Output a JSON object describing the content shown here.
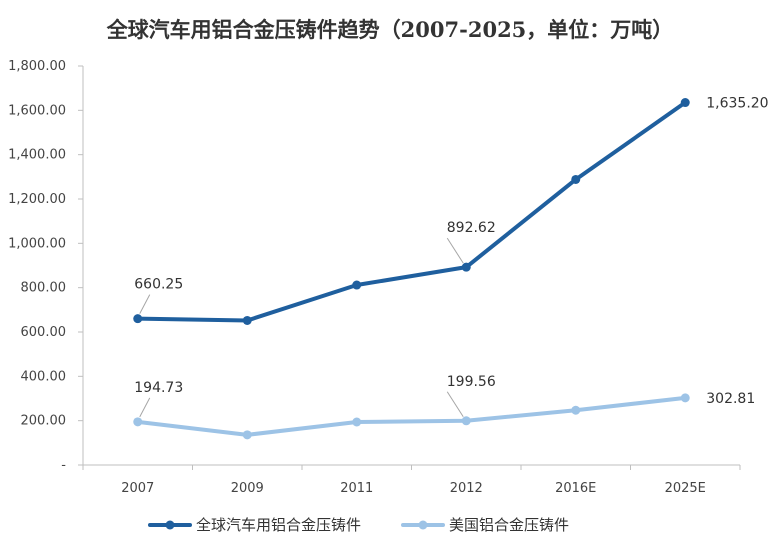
{
  "chart_data": {
    "type": "line",
    "title": "全球汽车用铝合金压铸件趋势（2007-2025，单位：万吨）",
    "categories": [
      "2007",
      "2009",
      "2011",
      "2012",
      "2016E",
      "2025E"
    ],
    "y_ticks": [
      "-",
      "200.00",
      "400.00",
      "600.00",
      "800.00",
      "1,000.00",
      "1,200.00",
      "1,400.00",
      "1,600.00",
      "1,800.00"
    ],
    "ylim": [
      0,
      1800
    ],
    "grid": false,
    "legend_position": "bottom",
    "series": [
      {
        "name": "全球汽车用铝合金压铸件",
        "color": "#1F5F9E",
        "values": [
          660.25,
          652,
          812,
          892.62,
          1288,
          1635.2
        ],
        "labels": [
          {
            "index": 0,
            "text": "660.25"
          },
          {
            "index": 3,
            "text": "892.62"
          },
          {
            "index": 5,
            "text": "1,635.20"
          }
        ]
      },
      {
        "name": "美国铝合金压铸件",
        "color": "#9DC3E6",
        "values": [
          194.73,
          136,
          194,
          199.56,
          247,
          302.81
        ],
        "labels": [
          {
            "index": 0,
            "text": "194.73"
          },
          {
            "index": 3,
            "text": "199.56"
          },
          {
            "index": 5,
            "text": "302.81"
          }
        ]
      }
    ]
  }
}
